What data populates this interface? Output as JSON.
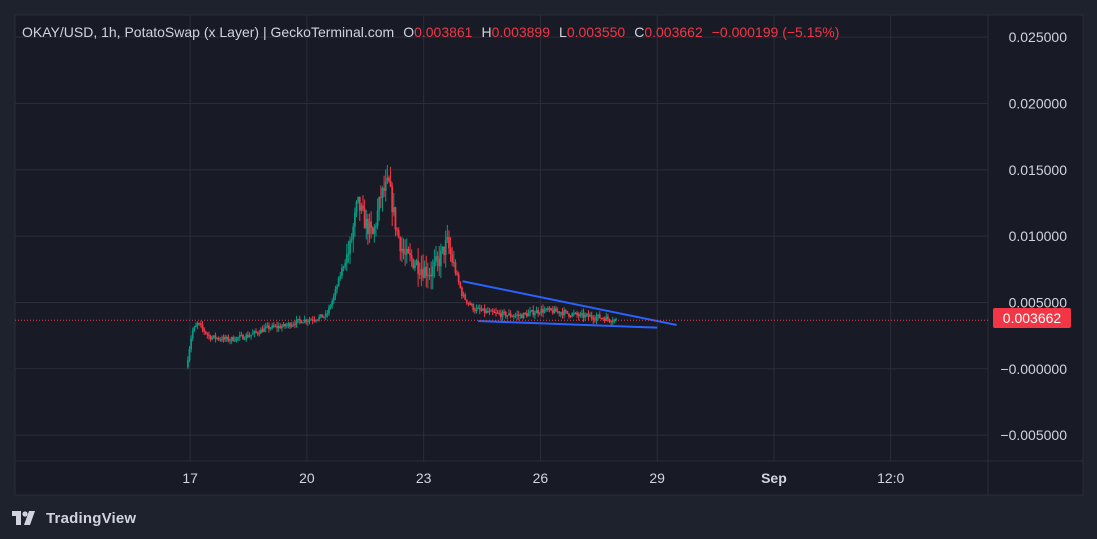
{
  "legend": {
    "symbol": "OKAY/USD, 1h, PotatoSwap (x Layer) | GeckoTerminal.com",
    "o_label": "O",
    "o_value": "0.003861",
    "h_label": "H",
    "h_value": "0.003899",
    "l_label": "L",
    "l_value": "0.003550",
    "c_label": "C",
    "c_value": "0.003662",
    "change": "−0.000199 (−5.15%)"
  },
  "price_tag": "0.003662",
  "brand": "TradingView",
  "colors": {
    "background": "#1e222d",
    "plot_background": "#181b25",
    "grid": "#2a2e39",
    "up": "#089981",
    "down": "#f23645",
    "trendline": "#2962ff",
    "text": "#d1d4dc"
  },
  "chart_data": {
    "type": "candlestick",
    "title": "OKAY/USD, 1h, PotatoSwap (x Layer) | GeckoTerminal.com",
    "y_ticks": [
      "0.025000",
      "0.020000",
      "0.015000",
      "0.010000",
      "0.005000",
      "−0.000000",
      "−0.005000"
    ],
    "y_tick_values": [
      0.025,
      0.02,
      0.015,
      0.01,
      0.005,
      0.0,
      -0.005
    ],
    "x_ticks": [
      "17",
      "20",
      "23",
      "26",
      "29",
      "Sep",
      "12:0"
    ],
    "x_tick_values": [
      17,
      20,
      23,
      26,
      29,
      32,
      35
    ],
    "xlim": [
      12.5,
      37.5
    ],
    "ylim": [
      -0.00695,
      0.02667
    ],
    "grid": true,
    "last_close": 0.003662,
    "close_path": [
      [
        16.9,
        0.0001
      ],
      [
        17.05,
        0.0028
      ],
      [
        17.2,
        0.0034
      ],
      [
        17.5,
        0.0024
      ],
      [
        18.0,
        0.0022
      ],
      [
        18.5,
        0.0025
      ],
      [
        19.0,
        0.0031
      ],
      [
        19.4,
        0.0032
      ],
      [
        19.8,
        0.0036
      ],
      [
        20.2,
        0.0038
      ],
      [
        20.5,
        0.004
      ],
      [
        20.7,
        0.0055
      ],
      [
        20.9,
        0.0075
      ],
      [
        21.1,
        0.009
      ],
      [
        21.3,
        0.0125
      ],
      [
        21.5,
        0.011
      ],
      [
        21.7,
        0.01
      ],
      [
        21.9,
        0.013
      ],
      [
        22.1,
        0.014
      ],
      [
        22.3,
        0.0105
      ],
      [
        22.5,
        0.0085
      ],
      [
        22.8,
        0.008
      ],
      [
        23.0,
        0.0075
      ],
      [
        23.2,
        0.0073
      ],
      [
        23.4,
        0.0082
      ],
      [
        23.6,
        0.0095
      ],
      [
        23.8,
        0.0075
      ],
      [
        24.0,
        0.0055
      ],
      [
        24.3,
        0.0045
      ],
      [
        24.7,
        0.0042
      ],
      [
        25.0,
        0.0041
      ],
      [
        25.5,
        0.004
      ],
      [
        26.0,
        0.0044
      ],
      [
        26.5,
        0.0043
      ],
      [
        27.0,
        0.004
      ],
      [
        27.5,
        0.0039
      ],
      [
        27.95,
        0.003662
      ]
    ],
    "falling_wedge": {
      "upper_line": [
        [
          24.0,
          0.0066
        ],
        [
          29.5,
          0.0033
        ]
      ],
      "lower_line": [
        [
          24.4,
          0.0036
        ],
        [
          29.0,
          0.0031
        ]
      ]
    }
  }
}
